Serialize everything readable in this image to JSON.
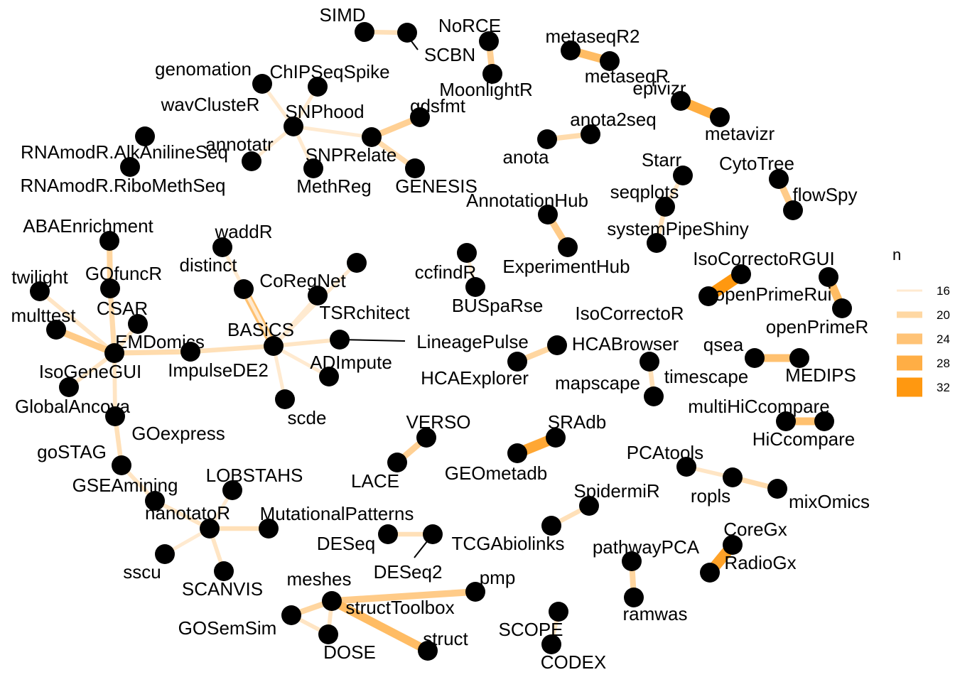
{
  "legend": {
    "title": "n",
    "entries": [
      {
        "label": "16",
        "value": 16,
        "color": "#FFEAD0"
      },
      {
        "label": "20",
        "value": 20,
        "color": "#FFD8A3"
      },
      {
        "label": "24",
        "value": 24,
        "color": "#FFC376"
      },
      {
        "label": "28",
        "value": 28,
        "color": "#FFAE45"
      },
      {
        "label": "32",
        "value": 32,
        "color": "#FF9810"
      }
    ]
  },
  "nodes": [
    {
      "id": "SIMD",
      "label": "SIMD"
    },
    {
      "id": "SCBN",
      "label": "SCBN"
    },
    {
      "id": "NoRCE",
      "label": "NoRCE"
    },
    {
      "id": "MoonlightR",
      "label": "MoonlightR"
    },
    {
      "id": "metaseqR2",
      "label": "metaseqR2"
    },
    {
      "id": "metaseqR",
      "label": "metaseqR"
    },
    {
      "id": "epivizr",
      "label": "epivizr"
    },
    {
      "id": "metavizr",
      "label": "metavizr"
    },
    {
      "id": "genomation",
      "label": "genomation"
    },
    {
      "id": "ChIPSeqSpike",
      "label": "ChIPSeqSpike"
    },
    {
      "id": "wavClusteR",
      "label": "wavClusteR"
    },
    {
      "id": "SNPhood",
      "label": "SNPhood"
    },
    {
      "id": "gdsfmt",
      "label": "gdsfmt"
    },
    {
      "id": "annotatr",
      "label": "annotatr"
    },
    {
      "id": "SNPRelate",
      "label": "SNPRelate"
    },
    {
      "id": "MethReg",
      "label": "MethReg"
    },
    {
      "id": "GENESIS",
      "label": "GENESIS"
    },
    {
      "id": "RNAmodR.AlkAnilineSeq",
      "label": "RNAmodR.AlkAnilineSeq"
    },
    {
      "id": "RNAmodR.RiboMethSeq",
      "label": "RNAmodR.RiboMethSeq"
    },
    {
      "id": "anota",
      "label": "anota"
    },
    {
      "id": "anota2seq",
      "label": "anota2seq"
    },
    {
      "id": "Starr",
      "label": "Starr"
    },
    {
      "id": "seqplots",
      "label": "seqplots"
    },
    {
      "id": "systemPipeShiny",
      "label": "systemPipeShiny"
    },
    {
      "id": "CytoTree",
      "label": "CytoTree"
    },
    {
      "id": "flowSpy",
      "label": "flowSpy"
    },
    {
      "id": "AnnotationHub",
      "label": "AnnotationHub"
    },
    {
      "id": "ExperimentHub",
      "label": "ExperimentHub"
    },
    {
      "id": "ABAEnrichment",
      "label": "ABAEnrichment"
    },
    {
      "id": "GOfuncR",
      "label": "GOfuncR"
    },
    {
      "id": "waddR",
      "label": "waddR"
    },
    {
      "id": "distinct",
      "label": "distinct"
    },
    {
      "id": "twilight",
      "label": "twilight"
    },
    {
      "id": "CoRegNet",
      "label": "CoRegNet"
    },
    {
      "id": "ccfindR",
      "label": "ccfindR"
    },
    {
      "id": "BUSpaRse",
      "label": "BUSpaRse"
    },
    {
      "id": "IsoCorrectoRGUI",
      "label": "IsoCorrectoRGUI"
    },
    {
      "id": "openPrimeRui",
      "label": "openPrimeRui"
    },
    {
      "id": "openPrimeR",
      "label": "openPrimeR"
    },
    {
      "id": "IsoCorrectoR",
      "label": "IsoCorrectoR"
    },
    {
      "id": "CSAR",
      "label": "CSAR"
    },
    {
      "id": "multtest",
      "label": "multtest"
    },
    {
      "id": "TSRchitect",
      "label": "TSRchitect"
    },
    {
      "id": "BASiCS",
      "label": "BASiCS"
    },
    {
      "id": "EMDomics",
      "label": "EMDomics"
    },
    {
      "id": "LineagePulse",
      "label": "LineagePulse"
    },
    {
      "id": "HCABrowser",
      "label": "HCABrowser"
    },
    {
      "id": "qsea",
      "label": "qsea"
    },
    {
      "id": "ImpulseDE2",
      "label": "ImpulseDE2"
    },
    {
      "id": "ADImpute",
      "label": "ADImpute"
    },
    {
      "id": "IsoGeneGUI",
      "label": "IsoGeneGUI"
    },
    {
      "id": "HCAExplorer",
      "label": "HCAExplorer"
    },
    {
      "id": "mapscape",
      "label": "mapscape"
    },
    {
      "id": "timescape",
      "label": "timescape"
    },
    {
      "id": "MEDIPS",
      "label": "MEDIPS"
    },
    {
      "id": "GlobalAncova",
      "label": "GlobalAncova"
    },
    {
      "id": "scde",
      "label": "scde"
    },
    {
      "id": "multiHiCcompare",
      "label": "multiHiCcompare"
    },
    {
      "id": "GOexpress",
      "label": "GOexpress"
    },
    {
      "id": "VERSO",
      "label": "VERSO"
    },
    {
      "id": "SRAdb",
      "label": "SRAdb"
    },
    {
      "id": "HiCcompare",
      "label": "HiCcompare"
    },
    {
      "id": "goSTAG",
      "label": "goSTAG"
    },
    {
      "id": "PCAtools",
      "label": "PCAtools"
    },
    {
      "id": "LOBSTAHS",
      "label": "LOBSTAHS"
    },
    {
      "id": "GEOmetadb",
      "label": "GEOmetadb"
    },
    {
      "id": "LACE",
      "label": "LACE"
    },
    {
      "id": "GSEAmining",
      "label": "GSEAmining"
    },
    {
      "id": "ropls",
      "label": "ropls"
    },
    {
      "id": "mixOmics",
      "label": "mixOmics"
    },
    {
      "id": "SpidermiR",
      "label": "SpidermiR"
    },
    {
      "id": "nanotatoR",
      "label": "nanotatoR"
    },
    {
      "id": "MutationalPatterns",
      "label": "MutationalPatterns"
    },
    {
      "id": "DESeq",
      "label": "DESeq"
    },
    {
      "id": "TCGAbiolinks",
      "label": "TCGAbiolinks"
    },
    {
      "id": "CoreGx",
      "label": "CoreGx"
    },
    {
      "id": "pathwayPCA",
      "label": "pathwayPCA"
    },
    {
      "id": "RadioGx",
      "label": "RadioGx"
    },
    {
      "id": "sscu",
      "label": "sscu"
    },
    {
      "id": "DESeq2",
      "label": "DESeq2"
    },
    {
      "id": "pmp",
      "label": "pmp"
    },
    {
      "id": "meshes",
      "label": "meshes"
    },
    {
      "id": "SCANVIS",
      "label": "SCANVIS"
    },
    {
      "id": "structToolbox",
      "label": "structToolbox"
    },
    {
      "id": "ramwas",
      "label": "ramwas"
    },
    {
      "id": "GOSemSim",
      "label": "GOSemSim"
    },
    {
      "id": "SCOPE",
      "label": "SCOPE"
    },
    {
      "id": "struct",
      "label": "struct"
    },
    {
      "id": "DOSE",
      "label": "DOSE"
    },
    {
      "id": "CODEX",
      "label": "CODEX"
    }
  ],
  "edges": [
    {
      "from": "SIMD",
      "to": "SCBN",
      "n": 18
    },
    {
      "from": "NoRCE",
      "to": "MoonlightR",
      "n": 21
    },
    {
      "from": "metaseqR2",
      "to": "metaseqR",
      "n": 25
    },
    {
      "from": "epivizr",
      "to": "metavizr",
      "n": 28
    },
    {
      "from": "genomation",
      "to": "SNPhood",
      "n": 16
    },
    {
      "from": "ChIPSeqSpike",
      "to": "SNPhood",
      "n": 16
    },
    {
      "from": "wavClusteR",
      "to": "SNPhood",
      "n": 16
    },
    {
      "from": "annotatr",
      "to": "SNPhood",
      "n": 16
    },
    {
      "from": "MethReg",
      "to": "SNPhood",
      "n": 16
    },
    {
      "from": "SNPhood",
      "to": "SNPRelate",
      "n": 16
    },
    {
      "from": "SNPRelate",
      "to": "gdsfmt",
      "n": 21
    },
    {
      "from": "SNPRelate",
      "to": "GENESIS",
      "n": 19
    },
    {
      "from": "anota",
      "to": "anota2seq",
      "n": 19
    },
    {
      "from": "Starr",
      "to": "seqplots",
      "n": 17
    },
    {
      "from": "seqplots",
      "to": "systemPipeShiny",
      "n": 18
    },
    {
      "from": "CytoTree",
      "to": "flowSpy",
      "n": 22
    },
    {
      "from": "AnnotationHub",
      "to": "ExperimentHub",
      "n": 22
    },
    {
      "from": "ABAEnrichment",
      "to": "GOfuncR",
      "n": 20
    },
    {
      "from": "GOfuncR",
      "to": "EMDomics",
      "n": 19
    },
    {
      "from": "twilight",
      "to": "EMDomics",
      "n": 17
    },
    {
      "from": "multtest",
      "to": "EMDomics",
      "n": 22
    },
    {
      "from": "CSAR",
      "to": "EMDomics",
      "n": 17
    },
    {
      "from": "IsoGeneGUI",
      "to": "EMDomics",
      "n": 17
    },
    {
      "from": "GlobalAncova",
      "to": "EMDomics",
      "n": 17
    },
    {
      "from": "EMDomics",
      "to": "ImpulseDE2",
      "n": 19
    },
    {
      "from": "ImpulseDE2",
      "to": "BASiCS",
      "n": 18
    },
    {
      "from": "distinct",
      "to": "BASiCS",
      "n": 24
    },
    {
      "from": "waddR",
      "to": "BASiCS",
      "n": 16
    },
    {
      "from": "CoRegNet",
      "to": "BASiCS",
      "n": 16
    },
    {
      "from": "TSRchitect",
      "to": "BASiCS",
      "n": 16
    },
    {
      "from": "ADImpute",
      "to": "BASiCS",
      "n": 16
    },
    {
      "from": "scde",
      "to": "BASiCS",
      "n": 16
    },
    {
      "from": "LineagePulse",
      "to": "BASiCS",
      "n": 17
    },
    {
      "from": "ccfindR",
      "to": "BUSpaRse",
      "n": 16
    },
    {
      "from": "IsoCorrectoRGUI",
      "to": "IsoCorrectoR",
      "n": 32
    },
    {
      "from": "openPrimeRui",
      "to": "openPrimeR",
      "n": 25
    },
    {
      "from": "HCAExplorer",
      "to": "HCABrowser",
      "n": 20
    },
    {
      "from": "mapscape",
      "to": "timescape",
      "n": 18
    },
    {
      "from": "qsea",
      "to": "MEDIPS",
      "n": 24
    },
    {
      "from": "multiHiCcompare",
      "to": "HiCcompare",
      "n": 24
    },
    {
      "from": "GlobalAncova",
      "to": "GOexpress",
      "n": 18
    },
    {
      "from": "GOexpress",
      "to": "goSTAG",
      "n": 18
    },
    {
      "from": "goSTAG",
      "to": "GSEAmining",
      "n": 17
    },
    {
      "from": "GSEAmining",
      "to": "nanotatoR",
      "n": 17
    },
    {
      "from": "LOBSTAHS",
      "to": "nanotatoR",
      "n": 16
    },
    {
      "from": "MutationalPatterns",
      "to": "nanotatoR",
      "n": 18
    },
    {
      "from": "sscu",
      "to": "nanotatoR",
      "n": 16
    },
    {
      "from": "SCANVIS",
      "to": "nanotatoR",
      "n": 17
    },
    {
      "from": "VERSO",
      "to": "LACE",
      "n": 21
    },
    {
      "from": "SRAdb",
      "to": "GEOmetadb",
      "n": 29
    },
    {
      "from": "PCAtools",
      "to": "ropls",
      "n": 17
    },
    {
      "from": "ropls",
      "to": "mixOmics",
      "n": 19
    },
    {
      "from": "SpidermiR",
      "to": "TCGAbiolinks",
      "n": 18
    },
    {
      "from": "DESeq",
      "to": "DESeq2",
      "n": 18
    },
    {
      "from": "CoreGx",
      "to": "RadioGx",
      "n": 30
    },
    {
      "from": "pathwayPCA",
      "to": "ramwas",
      "n": 20
    },
    {
      "from": "meshes",
      "to": "GOSemSim",
      "n": 20
    },
    {
      "from": "GOSemSim",
      "to": "DOSE",
      "n": 17
    },
    {
      "from": "meshes",
      "to": "DOSE",
      "n": 17
    },
    {
      "from": "pmp",
      "to": "structToolbox",
      "n": 22
    },
    {
      "from": "structToolbox",
      "to": "struct",
      "n": 25
    },
    {
      "from": "SCOPE",
      "to": "CODEX",
      "n": 17
    }
  ]
}
